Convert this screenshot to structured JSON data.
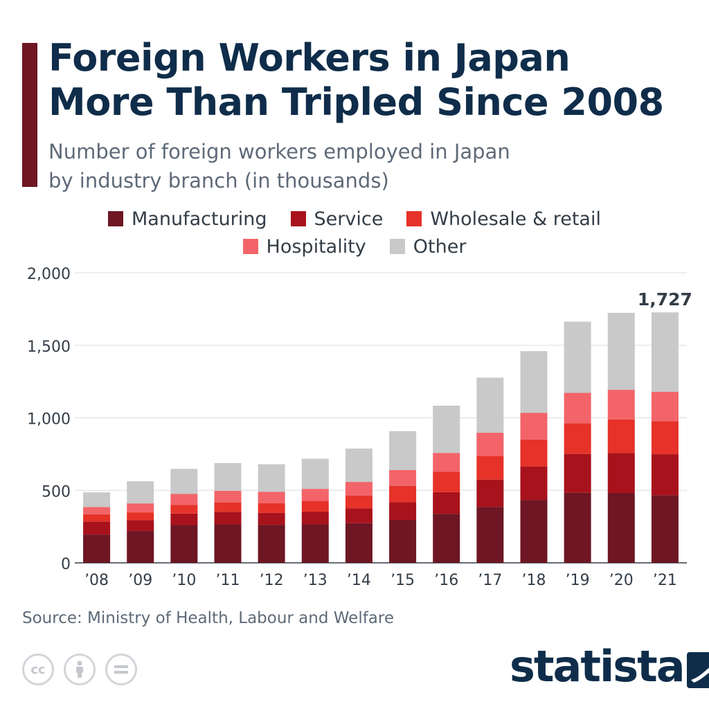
{
  "title_lines": [
    "Foreign Workers in Japan",
    "More Than Tripled Since 2008"
  ],
  "subtitle_lines": [
    "Number of foreign workers employed in Japan",
    "by industry branch (in thousands)"
  ],
  "source": "Source: Ministry of Health, Labour and Welfare",
  "brand": "statista",
  "colors": {
    "title": "#0f2d4a",
    "accent": "#6e1623",
    "axis_text": "#333d47",
    "grid": "#d9dde1"
  },
  "license_icons": [
    "cc-icon",
    "attribution-icon",
    "no-derivatives-icon"
  ],
  "chart_data": {
    "type": "bar",
    "stacked": true,
    "title": "Foreign Workers in Japan More Than Tripled Since 2008",
    "xlabel": "",
    "ylabel": "",
    "ylim": [
      0,
      2000
    ],
    "yticks": [
      0,
      500,
      1000,
      1500,
      2000
    ],
    "ytick_labels": [
      "0",
      "500",
      "1,000",
      "1,500",
      "2,000"
    ],
    "grid": true,
    "legend_position": "top-center",
    "categories": [
      "’08",
      "’09",
      "’10",
      "’11",
      "’12",
      "’13",
      "’14",
      "’15",
      "’16",
      "’17",
      "’18",
      "’19",
      "’20",
      "’21"
    ],
    "series": [
      {
        "name": "Manufacturing",
        "color": "#6e1623",
        "values": [
          195,
          220,
          260,
          265,
          262,
          265,
          273,
          296,
          338,
          386,
          434,
          483,
          482,
          466
        ]
      },
      {
        "name": "Service",
        "color": "#a8121c",
        "values": [
          90,
          75,
          80,
          87,
          82,
          88,
          102,
          122,
          150,
          188,
          231,
          268,
          275,
          283
        ]
      },
      {
        "name": "Wholesale & retail",
        "color": "#e63228",
        "values": [
          50,
          53,
          60,
          65,
          68,
          75,
          88,
          112,
          140,
          163,
          185,
          212,
          232,
          228
        ]
      },
      {
        "name": "Hospitality",
        "color": "#f26469",
        "values": [
          50,
          62,
          75,
          80,
          78,
          82,
          95,
          110,
          130,
          160,
          185,
          209,
          204,
          202
        ]
      },
      {
        "name": "Other",
        "color": "#c9c9c9",
        "values": [
          101,
          152,
          173,
          191,
          190,
          208,
          230,
          268,
          326,
          380,
          425,
          491,
          531,
          548
        ]
      }
    ],
    "annotations": [
      {
        "category": "’21",
        "text": "1,727"
      }
    ]
  }
}
